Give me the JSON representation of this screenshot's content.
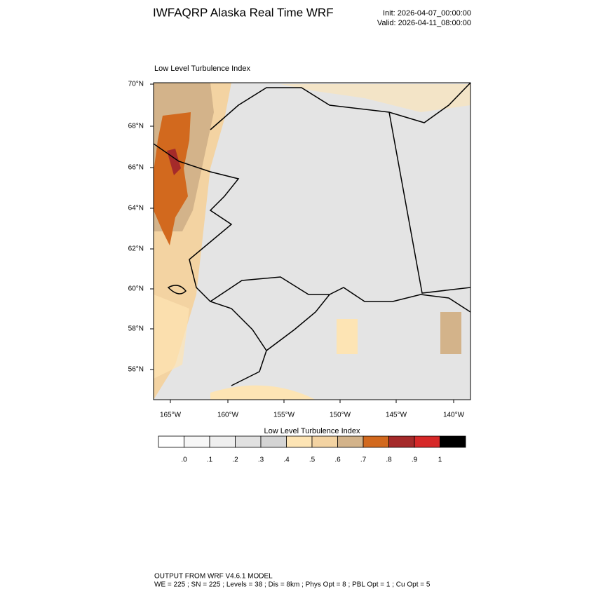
{
  "header": {
    "title": "IWFAQRP Alaska Real Time WRF",
    "init": "Init: 2026-04-07_00:00:00",
    "valid": "Valid: 2026-04-11_08:00:00"
  },
  "map": {
    "title": "Low Level Turbulence Index",
    "lat_labels": [
      "70°N",
      "68°N",
      "66°N",
      "64°N",
      "62°N",
      "60°N",
      "58°N",
      "56°N"
    ],
    "lon_labels": [
      "165°W",
      "160°W",
      "155°W",
      "150°W",
      "145°W",
      "140°W"
    ]
  },
  "colorbar": {
    "title": "Low Level Turbulence Index",
    "colors": [
      "#ffffff",
      "#f7f7f7",
      "#efefef",
      "#e1e1e1",
      "#d4d4d4",
      "#fde4b4",
      "#f3d3a2",
      "#d3b38a",
      "#d2691e",
      "#a52a2a",
      "#d62828",
      "#000000"
    ],
    "labels": [
      ".0",
      ".1",
      ".2",
      ".3",
      ".4",
      ".5",
      ".6",
      ".7",
      ".8",
      ".9",
      "1"
    ]
  },
  "footer": {
    "line1": "OUTPUT FROM WRF V4.6.1 MODEL",
    "line2": "WE = 225 ; SN = 225 ; Levels = 38 ; Dis = 8km ; Phys Opt = 8 ; PBL Opt = 1 ; Cu Opt = 5"
  }
}
